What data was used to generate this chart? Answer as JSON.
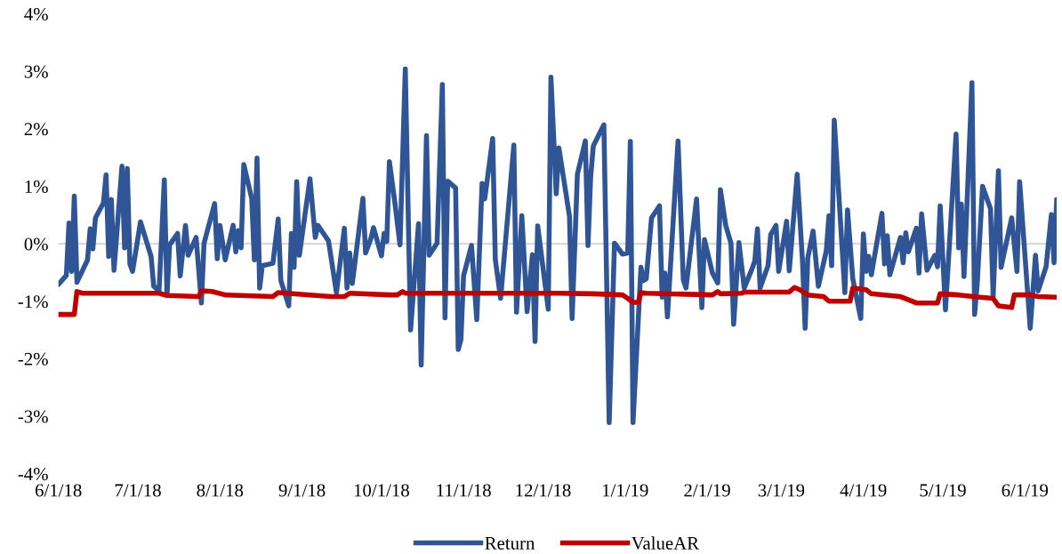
{
  "chart_data": {
    "type": "line",
    "xlim": [
      "2018-06-01",
      "2019-06-13"
    ],
    "xticks": [
      {
        "value": "2018-06-01",
        "label": "6/1/18"
      },
      {
        "value": "2018-07-01",
        "label": "7/1/18"
      },
      {
        "value": "2018-08-01",
        "label": "8/1/18"
      },
      {
        "value": "2018-09-01",
        "label": "9/1/18"
      },
      {
        "value": "2018-10-01",
        "label": "10/1/18"
      },
      {
        "value": "2018-11-01",
        "label": "11/1/18"
      },
      {
        "value": "2018-12-01",
        "label": "12/1/18"
      },
      {
        "value": "2019-01-01",
        "label": "1/1/19"
      },
      {
        "value": "2019-02-01",
        "label": "2/1/19"
      },
      {
        "value": "2019-03-01",
        "label": "3/1/19"
      },
      {
        "value": "2019-04-01",
        "label": "4/1/19"
      },
      {
        "value": "2019-05-01",
        "label": "5/1/19"
      },
      {
        "value": "2019-06-01",
        "label": "6/1/19"
      }
    ],
    "ylim": [
      -4,
      4
    ],
    "yticks": [
      {
        "value": -4,
        "label": "-4%"
      },
      {
        "value": -3,
        "label": "-3%"
      },
      {
        "value": -2,
        "label": "-2%"
      },
      {
        "value": -1,
        "label": "-1%"
      },
      {
        "value": 0,
        "label": "0%"
      },
      {
        "value": 1,
        "label": "1%"
      },
      {
        "value": 2,
        "label": "2%"
      },
      {
        "value": 3,
        "label": "3%"
      },
      {
        "value": 4,
        "label": "4%"
      }
    ],
    "grid": false,
    "legend": "bottom",
    "marker": "none",
    "line_style": "solid",
    "ref_lines": [
      {
        "axis": "y",
        "value": 0,
        "color": "#d9d9d9"
      }
    ],
    "series": [
      {
        "name": "Return",
        "color": "#2f5597",
        "x": [
          "2018-06-01",
          "2018-06-04",
          "2018-06-05",
          "2018-06-06",
          "2018-06-07",
          "2018-06-08",
          "2018-06-12",
          "2018-06-13",
          "2018-06-14",
          "2018-06-15",
          "2018-06-18",
          "2018-06-19",
          "2018-06-20",
          "2018-06-21",
          "2018-06-22",
          "2018-06-25",
          "2018-06-26",
          "2018-06-27",
          "2018-06-28",
          "2018-06-29",
          "2018-07-02",
          "2018-07-06",
          "2018-07-07",
          "2018-07-09",
          "2018-07-11",
          "2018-07-12",
          "2018-07-13",
          "2018-07-16",
          "2018-07-17",
          "2018-07-19",
          "2018-07-20",
          "2018-07-23",
          "2018-07-25",
          "2018-07-26",
          "2018-07-30",
          "2018-07-31",
          "2018-08-01",
          "2018-08-03",
          "2018-08-06",
          "2018-08-07",
          "2018-08-08",
          "2018-08-09",
          "2018-08-10",
          "2018-08-13",
          "2018-08-14",
          "2018-08-15",
          "2018-08-16",
          "2018-08-17",
          "2018-08-21",
          "2018-08-23",
          "2018-08-24",
          "2018-08-27",
          "2018-08-28",
          "2018-08-29",
          "2018-08-30",
          "2018-08-31",
          "2018-09-04",
          "2018-09-06",
          "2018-09-07",
          "2018-09-11",
          "2018-09-14",
          "2018-09-17",
          "2018-09-18",
          "2018-09-19",
          "2018-09-20",
          "2018-09-24",
          "2018-09-25",
          "2018-09-27",
          "2018-09-28",
          "2018-10-01",
          "2018-10-02",
          "2018-10-03",
          "2018-10-04",
          "2018-10-06",
          "2018-10-08",
          "2018-10-10",
          "2018-10-12",
          "2018-10-15",
          "2018-10-16",
          "2018-10-18",
          "2018-10-19",
          "2018-10-22",
          "2018-10-24",
          "2018-10-25",
          "2018-10-26",
          "2018-10-29",
          "2018-10-30",
          "2018-10-31",
          "2018-11-01",
          "2018-11-04",
          "2018-11-06",
          "2018-11-08",
          "2018-11-09",
          "2018-11-12",
          "2018-11-13",
          "2018-11-15",
          "2018-11-20",
          "2018-11-21",
          "2018-11-23",
          "2018-11-25",
          "2018-11-27",
          "2018-11-28",
          "2018-11-29",
          "2018-12-03",
          "2018-12-04",
          "2018-12-06",
          "2018-12-07",
          "2018-12-11",
          "2018-12-12",
          "2018-12-14",
          "2018-12-17",
          "2018-12-18",
          "2018-12-19",
          "2018-12-20",
          "2018-12-24",
          "2018-12-26",
          "2018-12-28",
          "2018-12-31",
          "2019-01-02",
          "2019-01-03",
          "2019-01-04",
          "2019-01-07",
          "2019-01-08",
          "2019-01-09",
          "2019-01-11",
          "2019-01-14",
          "2019-01-15",
          "2019-01-16",
          "2019-01-17",
          "2019-01-21",
          "2019-01-23",
          "2019-01-24",
          "2019-01-28",
          "2019-01-30",
          "2019-01-31",
          "2019-02-03",
          "2019-02-05",
          "2019-02-06",
          "2019-02-08",
          "2019-02-10",
          "2019-02-11",
          "2019-02-13",
          "2019-02-15",
          "2019-02-18",
          "2019-02-19",
          "2019-02-20",
          "2019-02-21",
          "2019-02-24",
          "2019-02-25",
          "2019-02-27",
          "2019-02-28",
          "2019-03-03",
          "2019-03-04",
          "2019-03-07",
          "2019-03-09",
          "2019-03-10",
          "2019-03-11",
          "2019-03-13",
          "2019-03-15",
          "2019-03-18",
          "2019-03-19",
          "2019-03-20",
          "2019-03-21",
          "2019-03-25",
          "2019-03-26",
          "2019-03-28",
          "2019-03-31",
          "2019-04-01",
          "2019-04-02",
          "2019-04-03",
          "2019-04-04",
          "2019-04-08",
          "2019-04-09",
          "2019-04-10",
          "2019-04-11",
          "2019-04-15",
          "2019-04-16",
          "2019-04-17",
          "2019-04-18",
          "2019-04-21",
          "2019-04-22",
          "2019-04-23",
          "2019-04-25",
          "2019-04-28",
          "2019-04-29",
          "2019-04-30",
          "2019-05-02",
          "2019-05-06",
          "2019-05-07",
          "2019-05-08",
          "2019-05-09",
          "2019-05-12",
          "2019-05-13",
          "2019-05-14",
          "2019-05-16",
          "2019-05-19",
          "2019-05-20",
          "2019-05-22",
          "2019-05-23",
          "2019-05-27",
          "2019-05-29",
          "2019-05-30",
          "2019-06-03",
          "2019-06-05",
          "2019-06-06",
          "2019-06-09",
          "2019-06-11",
          "2019-06-12",
          "2019-06-13"
        ],
        "values": [
          -0.71,
          -0.55,
          0.36,
          -0.48,
          0.83,
          -0.67,
          -0.28,
          0.26,
          -0.09,
          0.45,
          0.71,
          1.2,
          -0.22,
          0.77,
          -0.46,
          1.35,
          -0.07,
          1.31,
          -0.35,
          -0.48,
          0.38,
          -0.22,
          -0.74,
          -0.82,
          1.11,
          -0.9,
          -0.02,
          0.18,
          -0.56,
          0.32,
          -0.2,
          0.11,
          -1.03,
          0.01,
          0.7,
          -0.26,
          0.32,
          -0.28,
          0.32,
          -0.14,
          0.23,
          -0.07,
          1.38,
          0.79,
          -0.28,
          1.49,
          -0.77,
          -0.38,
          -0.34,
          0.43,
          -0.64,
          -1.08,
          0.18,
          -0.41,
          1.08,
          -0.2,
          1.13,
          0.11,
          0.32,
          0.05,
          -0.85,
          0.27,
          -0.77,
          -0.16,
          -0.69,
          0.79,
          -0.16,
          0.09,
          0.28,
          -0.21,
          0.18,
          0.04,
          1.43,
          0.74,
          -0.02,
          3.04,
          -1.5,
          0.35,
          -2.11,
          1.88,
          -0.2,
          0.01,
          2.77,
          -1.29,
          1.09,
          0.97,
          -1.84,
          -1.67,
          -0.56,
          -0.03,
          -1.32,
          1.05,
          0.78,
          1.83,
          -0.28,
          -0.95,
          1.72,
          -1.19,
          0.49,
          -1.18,
          -0.19,
          -1.7,
          0.31,
          -1.14,
          2.9,
          0.87,
          1.67,
          0.48,
          -1.3,
          1.21,
          1.79,
          -0.03,
          1.16,
          1.7,
          2.07,
          -3.11,
          0.01,
          -0.18,
          -0.16,
          1.78,
          -3.11,
          -0.41,
          -0.64,
          -0.61,
          0.45,
          0.66,
          -0.93,
          -0.51,
          -1.27,
          1.79,
          -0.63,
          -0.77,
          0.78,
          -1.11,
          0.07,
          -0.51,
          -0.68,
          0.94,
          0.32,
          0.01,
          -1.4,
          0.02,
          -0.77,
          -0.43,
          -0.3,
          0.26,
          -0.77,
          -0.38,
          0.16,
          0.32,
          -0.48,
          0.39,
          -0.47,
          1.21,
          -0.3,
          -1.47,
          -0.25,
          0.22,
          -0.74,
          -0.12,
          0.49,
          -0.38,
          2.15,
          -0.85,
          0.59,
          -0.61,
          -1.3,
          0.17,
          -0.48,
          -0.22,
          -0.54,
          0.53,
          -0.35,
          0.14,
          -0.54,
          0.11,
          -0.33,
          0.19,
          -0.14,
          0.27,
          -0.51,
          0.52,
          -0.46,
          -0.2,
          -0.4,
          0.66,
          -1.15,
          1.91,
          -0.07,
          0.69,
          -0.57,
          2.8,
          -1.23,
          -0.69,
          1.0,
          0.61,
          -0.92,
          1.27,
          -0.41,
          0.45,
          -0.48,
          1.08,
          -1.47,
          -0.2,
          -0.82,
          -0.4,
          0.51,
          -0.33,
          0.77
        ]
      },
      {
        "name": "ValueAR",
        "color": "#c00000",
        "x": [
          "2018-06-01",
          "2018-06-07",
          "2018-06-08",
          "2018-06-10",
          "2018-07-09",
          "2018-07-12",
          "2018-07-24",
          "2018-07-25",
          "2018-07-29",
          "2018-08-03",
          "2018-08-09",
          "2018-08-21",
          "2018-08-23",
          "2018-09-04",
          "2018-09-12",
          "2018-09-17",
          "2018-09-19",
          "2018-10-04",
          "2018-10-07",
          "2018-10-09",
          "2018-10-10",
          "2018-12-07",
          "2018-12-20",
          "2018-12-31",
          "2019-01-02",
          "2019-01-04",
          "2019-01-06",
          "2019-01-07",
          "2019-01-09",
          "2019-02-03",
          "2019-02-05",
          "2019-02-06",
          "2019-02-14",
          "2019-02-15",
          "2019-03-04",
          "2019-03-06",
          "2019-03-08",
          "2019-03-11",
          "2019-03-17",
          "2019-03-19",
          "2019-03-27",
          "2019-03-28",
          "2019-04-02",
          "2019-04-04",
          "2019-04-09",
          "2019-04-15",
          "2019-04-21",
          "2019-04-29",
          "2019-04-30",
          "2019-05-07",
          "2019-05-15",
          "2019-05-20",
          "2019-05-22",
          "2019-05-27",
          "2019-05-28",
          "2019-06-03",
          "2019-06-06",
          "2019-06-13"
        ],
        "values": [
          -1.23,
          -1.23,
          -0.83,
          -0.86,
          -0.86,
          -0.9,
          -0.92,
          -0.82,
          -0.83,
          -0.89,
          -0.9,
          -0.92,
          -0.85,
          -0.89,
          -0.92,
          -0.92,
          -0.86,
          -0.89,
          -0.89,
          -0.83,
          -0.86,
          -0.86,
          -0.87,
          -0.89,
          -0.95,
          -1.02,
          -1.02,
          -0.85,
          -0.86,
          -0.89,
          -0.83,
          -0.87,
          -0.86,
          -0.84,
          -0.84,
          -0.76,
          -0.8,
          -0.89,
          -0.92,
          -1.0,
          -1.0,
          -0.77,
          -0.8,
          -0.87,
          -0.89,
          -0.92,
          -1.03,
          -1.03,
          -0.87,
          -0.89,
          -0.93,
          -0.95,
          -1.08,
          -1.11,
          -0.89,
          -0.89,
          -0.92,
          -0.93
        ]
      }
    ]
  }
}
